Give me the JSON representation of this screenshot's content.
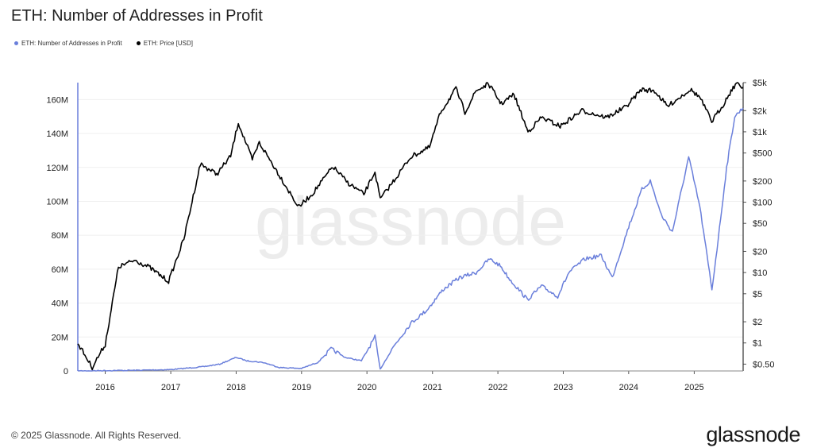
{
  "page": {
    "title": "ETH: Number of Addresses in Profit",
    "copyright": "© 2025 Glassnode. All Rights Reserved.",
    "logo_text": "glassnode",
    "watermark": "glassnode"
  },
  "chart_data": {
    "type": "line",
    "title": "ETH: Number of Addresses in Profit",
    "legend": [
      {
        "name": "ETH: Number of Addresses in Profit",
        "color": "#6a7fdb"
      },
      {
        "name": "ETH: Price [USD]",
        "color": "#000000"
      }
    ],
    "legend_position": "top-left",
    "grid": true,
    "x_axis": {
      "type": "date",
      "range": [
        "2015-08-01",
        "2025-10-01"
      ],
      "ticks": [
        "2016",
        "2017",
        "2018",
        "2019",
        "2020",
        "2021",
        "2022",
        "2023",
        "2024",
        "2025"
      ]
    },
    "y_left": {
      "label": "",
      "range": [
        0,
        170000000
      ],
      "ticks": [
        "0",
        "20M",
        "40M",
        "60M",
        "80M",
        "100M",
        "120M",
        "140M",
        "160M"
      ]
    },
    "y_right": {
      "label": "",
      "scale": "log",
      "range": [
        0.4,
        5000
      ],
      "ticks": [
        {
          "label": "$5k",
          "value": 5000
        },
        {
          "label": "$2k",
          "value": 2000
        },
        {
          "label": "$1k",
          "value": 1000
        },
        {
          "label": "$500",
          "value": 500
        },
        {
          "label": "$200",
          "value": 200
        },
        {
          "label": "$100",
          "value": 100
        },
        {
          "label": "$50",
          "value": 50
        },
        {
          "label": "$20",
          "value": 20
        },
        {
          "label": "$10",
          "value": 10
        },
        {
          "label": "$5",
          "value": 5
        },
        {
          "label": "$2",
          "value": 2
        },
        {
          "label": "$1",
          "value": 1
        },
        {
          "label": "$0.50",
          "value": 0.5
        }
      ]
    },
    "series": [
      {
        "name": "ETH: Number of Addresses in Profit",
        "axis": "left",
        "color": "#6a7fdb",
        "points": [
          [
            "2015-08-01",
            0
          ],
          [
            "2016-01-01",
            200000
          ],
          [
            "2016-07-01",
            400000
          ],
          [
            "2017-01-01",
            800000
          ],
          [
            "2017-07-01",
            2500000
          ],
          [
            "2017-10-01",
            4000000
          ],
          [
            "2018-01-01",
            8000000
          ],
          [
            "2018-03-01",
            6000000
          ],
          [
            "2018-06-01",
            5000000
          ],
          [
            "2018-09-01",
            2000000
          ],
          [
            "2019-01-01",
            1500000
          ],
          [
            "2019-04-01",
            5000000
          ],
          [
            "2019-06-15",
            13000000
          ],
          [
            "2019-09-01",
            8000000
          ],
          [
            "2019-12-01",
            6000000
          ],
          [
            "2020-02-15",
            20000000
          ],
          [
            "2020-03-15",
            1000000
          ],
          [
            "2020-06-01",
            15000000
          ],
          [
            "2020-09-01",
            28000000
          ],
          [
            "2020-12-01",
            36000000
          ],
          [
            "2021-03-01",
            48000000
          ],
          [
            "2021-06-01",
            55000000
          ],
          [
            "2021-09-01",
            58000000
          ],
          [
            "2021-11-15",
            66000000
          ],
          [
            "2022-01-15",
            62000000
          ],
          [
            "2022-03-01",
            55000000
          ],
          [
            "2022-06-15",
            42000000
          ],
          [
            "2022-09-01",
            50000000
          ],
          [
            "2022-12-01",
            44000000
          ],
          [
            "2023-02-01",
            58000000
          ],
          [
            "2023-05-01",
            66000000
          ],
          [
            "2023-08-01",
            68000000
          ],
          [
            "2023-10-01",
            55000000
          ],
          [
            "2024-01-01",
            85000000
          ],
          [
            "2024-03-15",
            107000000
          ],
          [
            "2024-05-01",
            112000000
          ],
          [
            "2024-07-01",
            92000000
          ],
          [
            "2024-09-01",
            82000000
          ],
          [
            "2024-12-01",
            126000000
          ],
          [
            "2025-02-01",
            97000000
          ],
          [
            "2025-04-10",
            48000000
          ],
          [
            "2025-05-15",
            78000000
          ],
          [
            "2025-07-01",
            120000000
          ],
          [
            "2025-08-15",
            150000000
          ],
          [
            "2025-09-30",
            155000000
          ]
        ]
      },
      {
        "name": "ETH: Price [USD]",
        "axis": "right",
        "color": "#000000",
        "points": [
          [
            "2015-08-01",
            1.0
          ],
          [
            "2015-10-20",
            0.45
          ],
          [
            "2016-01-01",
            0.95
          ],
          [
            "2016-03-15",
            12
          ],
          [
            "2016-06-15",
            15
          ],
          [
            "2016-09-01",
            12
          ],
          [
            "2016-12-20",
            7.5
          ],
          [
            "2017-03-15",
            30
          ],
          [
            "2017-06-15",
            350
          ],
          [
            "2017-09-15",
            250
          ],
          [
            "2017-12-01",
            450
          ],
          [
            "2018-01-13",
            1350
          ],
          [
            "2018-04-01",
            400
          ],
          [
            "2018-05-10",
            700
          ],
          [
            "2018-08-15",
            280
          ],
          [
            "2018-12-15",
            85
          ],
          [
            "2019-03-01",
            130
          ],
          [
            "2019-06-25",
            320
          ],
          [
            "2019-09-15",
            190
          ],
          [
            "2019-12-15",
            130
          ],
          [
            "2020-02-15",
            270
          ],
          [
            "2020-03-15",
            110
          ],
          [
            "2020-06-15",
            230
          ],
          [
            "2020-09-01",
            440
          ],
          [
            "2020-12-15",
            600
          ],
          [
            "2021-02-15",
            1900
          ],
          [
            "2021-05-12",
            4100
          ],
          [
            "2021-07-01",
            1900
          ],
          [
            "2021-09-01",
            3800
          ],
          [
            "2021-11-10",
            4800
          ],
          [
            "2022-01-20",
            2500
          ],
          [
            "2022-04-01",
            3400
          ],
          [
            "2022-06-18",
            1000
          ],
          [
            "2022-09-01",
            1600
          ],
          [
            "2022-12-15",
            1200
          ],
          [
            "2023-04-15",
            2000
          ],
          [
            "2023-09-01",
            1600
          ],
          [
            "2023-12-15",
            2250
          ],
          [
            "2024-03-12",
            4000
          ],
          [
            "2024-05-25",
            3800
          ],
          [
            "2024-08-05",
            2300
          ],
          [
            "2024-12-10",
            4000
          ],
          [
            "2025-02-01",
            3100
          ],
          [
            "2025-04-09",
            1400
          ],
          [
            "2025-06-15",
            2500
          ],
          [
            "2025-07-25",
            3800
          ],
          [
            "2025-08-24",
            4900
          ],
          [
            "2025-09-30",
            4300
          ]
        ]
      }
    ]
  }
}
